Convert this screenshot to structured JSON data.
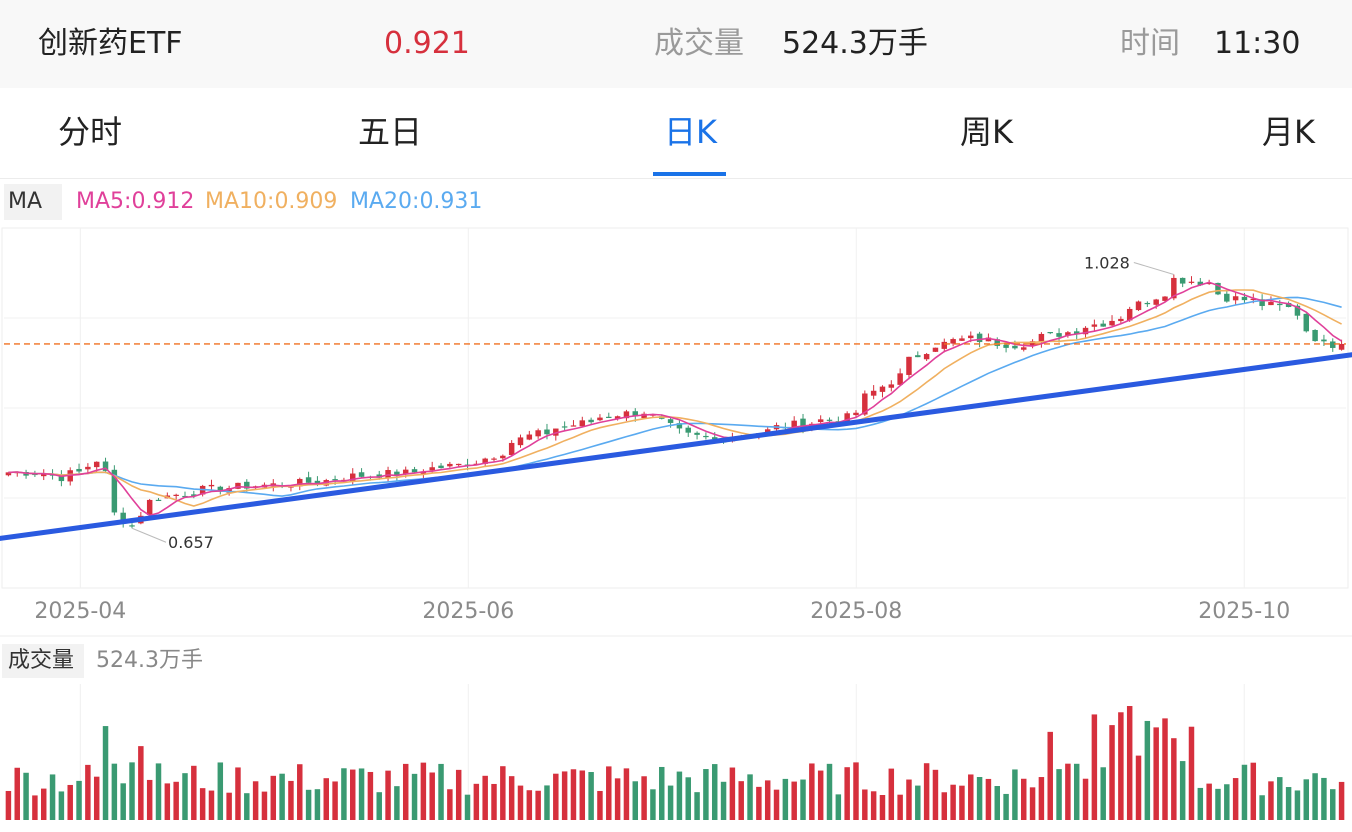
{
  "header": {
    "name": "创新药ETF",
    "price": "0.921",
    "volume_label": "成交量",
    "volume_value": "524.3万手",
    "time_label": "时间",
    "time_value": "11:30"
  },
  "tabs": [
    {
      "label": "分时"
    },
    {
      "label": "五日"
    },
    {
      "label": "日K"
    },
    {
      "label": "周K"
    },
    {
      "label": "月K"
    }
  ],
  "active_tab": "日K",
  "ma_legend": {
    "label": "MA",
    "ma5": "MA5:0.912",
    "ma10": "MA10:0.909",
    "ma20": "MA20:0.931"
  },
  "volume_legend": {
    "label": "成交量",
    "value": "524.3万手"
  },
  "colors": {
    "up": "#d6303d",
    "down": "#3a9a72",
    "ma5": "#e0409a",
    "ma10": "#f0b060",
    "ma20": "#5aaaf0",
    "trendline": "#2a5ae0",
    "current_price_line": "#f07020",
    "active_tab": "#1a73e8"
  },
  "chart_data": {
    "type": "candlestick",
    "x_ticks": [
      "2025-04",
      "2025-06",
      "2025-08",
      "2025-10"
    ],
    "y_range": [
      0.6,
      1.08
    ],
    "current_price": 0.921,
    "annotations": [
      {
        "text": "1.028",
        "kind": "high"
      },
      {
        "text": "0.657",
        "kind": "low"
      }
    ],
    "trendline": {
      "from": [
        "2025-03-20",
        0.655
      ],
      "to": [
        "2025-10-17",
        0.905
      ]
    },
    "anchors": [
      [
        "2025-03-20",
        0.745
      ],
      [
        "2025-03-25",
        0.745
      ],
      [
        "2025-03-28",
        0.738
      ],
      [
        "2025-04-01",
        0.745
      ],
      [
        "2025-04-03",
        0.762
      ],
      [
        "2025-04-07",
        0.688
      ],
      [
        "2025-04-09",
        0.672
      ],
      [
        "2025-04-11",
        0.705
      ],
      [
        "2025-04-18",
        0.718
      ],
      [
        "2025-04-25",
        0.725
      ],
      [
        "2025-05-06",
        0.73
      ],
      [
        "2025-05-14",
        0.74
      ],
      [
        "2025-05-22",
        0.744
      ],
      [
        "2025-06-03",
        0.76
      ],
      [
        "2025-06-11",
        0.795
      ],
      [
        "2025-06-18",
        0.81
      ],
      [
        "2025-06-25",
        0.825
      ],
      [
        "2025-06-30",
        0.828
      ],
      [
        "2025-07-04",
        0.8
      ],
      [
        "2025-07-10",
        0.79
      ],
      [
        "2025-07-17",
        0.8
      ],
      [
        "2025-07-24",
        0.812
      ],
      [
        "2025-07-31",
        0.82
      ],
      [
        "2025-08-07",
        0.87
      ],
      [
        "2025-08-14",
        0.92
      ],
      [
        "2025-08-20",
        0.928
      ],
      [
        "2025-08-27",
        0.92
      ],
      [
        "2025-09-03",
        0.935
      ],
      [
        "2025-09-10",
        0.95
      ],
      [
        "2025-09-17",
        0.98
      ],
      [
        "2025-09-22",
        1.01
      ],
      [
        "2025-09-26",
        1.005
      ],
      [
        "2025-09-30",
        0.985
      ],
      [
        "2025-10-09",
        0.97
      ],
      [
        "2025-10-13",
        0.94
      ],
      [
        "2025-10-15",
        0.92
      ],
      [
        "2025-10-17",
        0.921
      ]
    ],
    "volume_unit": "万手",
    "latest_volume": 524.3
  }
}
